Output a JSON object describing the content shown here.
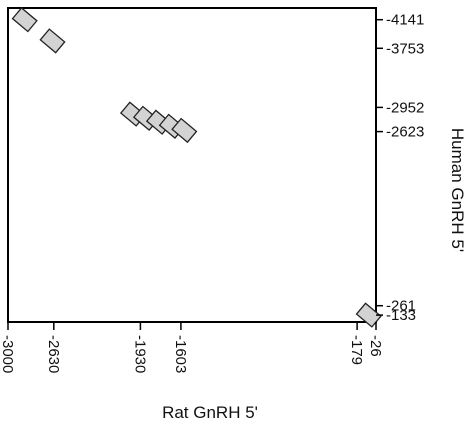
{
  "chart_data": {
    "type": "dot-plot",
    "xlabel": "Rat GnRH 5'",
    "ylabel": "Human GnRH 5'",
    "x_ticks": [
      "-3000",
      "-2630",
      "-1930",
      "-1603",
      "-179",
      "-26"
    ],
    "y_ticks": [
      "-4141",
      "-3753",
      "-2952",
      "-2623",
      "-261",
      "-133"
    ],
    "x_tick_values": [
      -3000,
      -2630,
      -1930,
      -1603,
      -179,
      -26
    ],
    "y_tick_values": [
      -4141,
      -3753,
      -2952,
      -2623,
      -261,
      -133
    ],
    "xlim": [
      -3000,
      -26
    ],
    "ylim": [
      -4300,
      -40
    ],
    "grid": false,
    "fill_color": "#d3d3d3",
    "stroke_color": "#222222",
    "segments": [
      {
        "x": -2865,
        "y": -4141
      },
      {
        "x": -2640,
        "y": -3853
      },
      {
        "x": -1990,
        "y": -2860
      },
      {
        "x": -1885,
        "y": -2803
      },
      {
        "x": -1780,
        "y": -2750
      },
      {
        "x": -1676,
        "y": -2695
      },
      {
        "x": -1575,
        "y": -2640
      },
      {
        "x": -85,
        "y": -133
      }
    ]
  }
}
